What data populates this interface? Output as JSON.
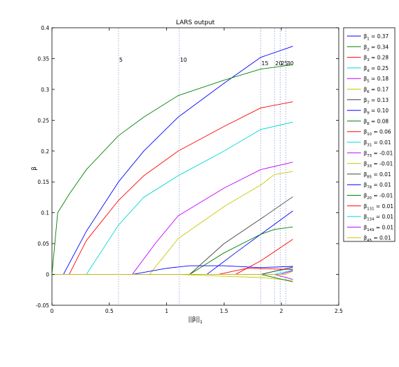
{
  "chart_data": {
    "type": "line",
    "title": "LARS output",
    "xlabel": "||β||",
    "xlabel_sub": "1",
    "ylabel": "β",
    "xlim": [
      0,
      2.5
    ],
    "ylim": [
      -0.05,
      0.4
    ],
    "x_ticks": [
      "0",
      "0.5",
      "1",
      "1.5",
      "2",
      "2.5"
    ],
    "y_ticks": [
      "-0.05",
      "0",
      "0.05",
      "0.1",
      "0.15",
      "0.2",
      "0.25",
      "0.3",
      "0.35",
      "0.4"
    ],
    "grid": false,
    "legend_position": "outside-right",
    "step_markers": [
      {
        "label": "5",
        "x": 0.58
      },
      {
        "label": "10",
        "x": 1.11
      },
      {
        "label": "15",
        "x": 1.82
      },
      {
        "label": "20",
        "x": 1.94
      },
      {
        "label": "25",
        "x": 1.99
      },
      {
        "label": "30",
        "x": 2.04
      }
    ],
    "series": [
      {
        "symbol": "β",
        "sub": "1",
        "value": "0.37",
        "color": "#0000ff",
        "x": [
          0,
          0.1,
          0.3,
          0.58,
          0.8,
          1.1,
          1.5,
          1.82,
          2.1
        ],
        "y": [
          0,
          0,
          0.07,
          0.15,
          0.2,
          0.255,
          0.31,
          0.352,
          0.37
        ]
      },
      {
        "symbol": "β",
        "sub": "2",
        "value": "0.34",
        "color": "#008000",
        "x": [
          0,
          0.05,
          0.15,
          0.3,
          0.58,
          0.8,
          1.1,
          1.5,
          1.82,
          2.1
        ],
        "y": [
          0,
          0.1,
          0.13,
          0.17,
          0.225,
          0.255,
          0.29,
          0.315,
          0.333,
          0.34
        ]
      },
      {
        "symbol": "β",
        "sub": "3",
        "value": "0.28",
        "color": "#ff0000",
        "x": [
          0,
          0.15,
          0.3,
          0.58,
          0.8,
          1.1,
          1.5,
          1.82,
          2.1
        ],
        "y": [
          0,
          0,
          0.055,
          0.12,
          0.16,
          0.2,
          0.24,
          0.27,
          0.28
        ]
      },
      {
        "symbol": "β",
        "sub": "4",
        "value": "0.25",
        "color": "#00d8d8",
        "x": [
          0,
          0.3,
          0.58,
          0.8,
          1.1,
          1.5,
          1.82,
          2.1
        ],
        "y": [
          0,
          0,
          0.08,
          0.125,
          0.16,
          0.2,
          0.235,
          0.247
        ]
      },
      {
        "symbol": "β",
        "sub": "5",
        "value": "0.18",
        "color": "#c000ff",
        "x": [
          0,
          0.7,
          0.9,
          1.1,
          1.5,
          1.82,
          2.1
        ],
        "y": [
          0,
          0,
          0.05,
          0.095,
          0.14,
          0.17,
          0.182
        ]
      },
      {
        "symbol": "β",
        "sub": "6",
        "value": "0.17",
        "color": "#c8c800",
        "x": [
          0,
          0.85,
          1.1,
          1.5,
          1.82,
          1.94,
          2.1
        ],
        "y": [
          0,
          0,
          0.058,
          0.11,
          0.145,
          0.162,
          0.167
        ]
      },
      {
        "symbol": "β",
        "sub": "7",
        "value": "0.13",
        "color": "#404040",
        "x": [
          0,
          1.2,
          1.5,
          1.82,
          2.1
        ],
        "y": [
          0,
          0,
          0.05,
          0.09,
          0.126
        ]
      },
      {
        "symbol": "β",
        "sub": "9",
        "value": "0.10",
        "color": "#0000ff",
        "x": [
          0,
          1.35,
          1.6,
          1.82,
          2.1
        ],
        "y": [
          0,
          0,
          0.035,
          0.065,
          0.103
        ]
      },
      {
        "symbol": "β",
        "sub": "8",
        "value": "0.08",
        "color": "#008000",
        "x": [
          0,
          1.2,
          1.5,
          1.82,
          1.94,
          2.1
        ],
        "y": [
          0,
          0,
          0.035,
          0.065,
          0.073,
          0.077
        ]
      },
      {
        "symbol": "β",
        "sub": "10",
        "value": "0.06",
        "color": "#ff0000",
        "x": [
          0,
          1.6,
          1.82,
          2.1
        ],
        "y": [
          0,
          0,
          0.022,
          0.057
        ]
      },
      {
        "symbol": "β",
        "sub": "31",
        "value": "0.01",
        "color": "#00d8d8",
        "x": [
          0,
          1.82,
          1.94,
          2.1
        ],
        "y": [
          0,
          0,
          0.005,
          0.01
        ]
      },
      {
        "symbol": "β",
        "sub": "73",
        "value": "-0.01",
        "color": "#c000ff",
        "x": [
          0,
          1.94,
          2.1
        ],
        "y": [
          0,
          0,
          -0.008
        ]
      },
      {
        "symbol": "β",
        "sub": "33",
        "value": "-0.01",
        "color": "#c8c800",
        "x": [
          0,
          1.1,
          1.5,
          1.82,
          2.1
        ],
        "y": [
          0,
          0,
          -0.003,
          -0.005,
          -0.01
        ]
      },
      {
        "symbol": "β",
        "sub": "85",
        "value": "0.01",
        "color": "#404040",
        "x": [
          0,
          1.82,
          2.1
        ],
        "y": [
          0,
          0,
          0.012
        ]
      },
      {
        "symbol": "β",
        "sub": "78",
        "value": "0.01",
        "color": "#0000ff",
        "x": [
          0,
          0.7,
          1.0,
          1.2,
          1.5,
          1.82,
          2.1
        ],
        "y": [
          0,
          0,
          0.01,
          0.014,
          0.014,
          0.011,
          0.013
        ]
      },
      {
        "symbol": "β",
        "sub": "20",
        "value": "-0.01",
        "color": "#008000",
        "x": [
          0,
          1.82,
          2.1
        ],
        "y": [
          0,
          0,
          -0.012
        ]
      },
      {
        "symbol": "β",
        "sub": "131",
        "value": "0.01",
        "color": "#ff0000",
        "x": [
          0,
          1.45,
          1.7,
          2.1
        ],
        "y": [
          0,
          0,
          0.01,
          0.008
        ]
      },
      {
        "symbol": "β",
        "sub": "134",
        "value": "0.01",
        "color": "#00d8d8",
        "x": [
          0,
          1.94,
          2.1
        ],
        "y": [
          0,
          0,
          0.007
        ]
      },
      {
        "symbol": "β",
        "sub": "149",
        "value": "0.01",
        "color": "#c000ff",
        "x": [
          0,
          1.99,
          2.1
        ],
        "y": [
          0,
          0,
          0.006
        ]
      },
      {
        "symbol": "β",
        "sub": "45",
        "value": "0.01",
        "color": "#c8c800",
        "x": [
          0,
          2.04,
          2.1
        ],
        "y": [
          0,
          0,
          0.005
        ]
      }
    ]
  }
}
